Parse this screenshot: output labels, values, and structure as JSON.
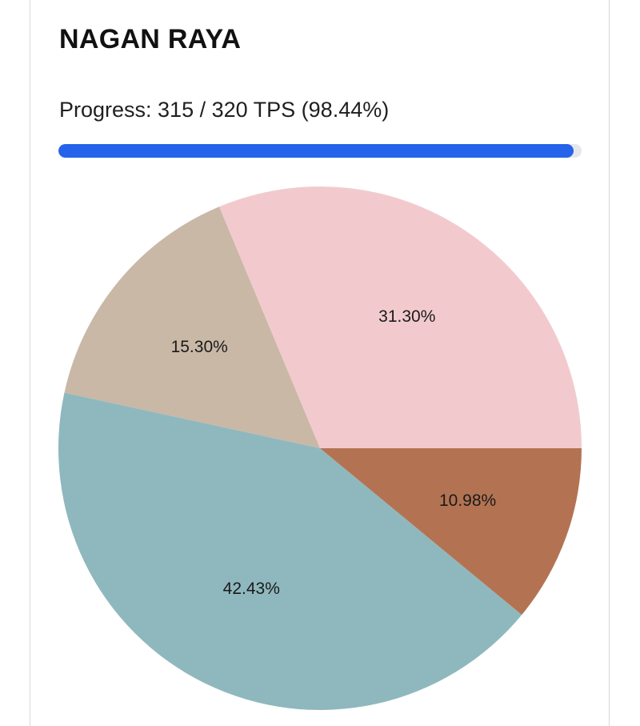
{
  "card": {
    "title": "NAGAN RAYA",
    "progress_label": "Progress: 315 / 320 TPS (98.44%)",
    "progress_fraction": 0.9844,
    "progress_color": "#2563eb",
    "track_color": "#e6e7ea"
  },
  "chart_data": {
    "type": "pie",
    "title": "",
    "start": "3 o'clock",
    "direction": "counter-clockwise",
    "slices": [
      {
        "label": "31.30%",
        "value": 31.3,
        "color": "#f2cacd"
      },
      {
        "label": "15.30%",
        "value": 15.3,
        "color": "#c9b8a6"
      },
      {
        "label": "42.43%",
        "value": 42.43,
        "color": "#8fb8be"
      },
      {
        "label": "10.98%",
        "value": 10.98,
        "color": "#b37352"
      }
    ]
  }
}
